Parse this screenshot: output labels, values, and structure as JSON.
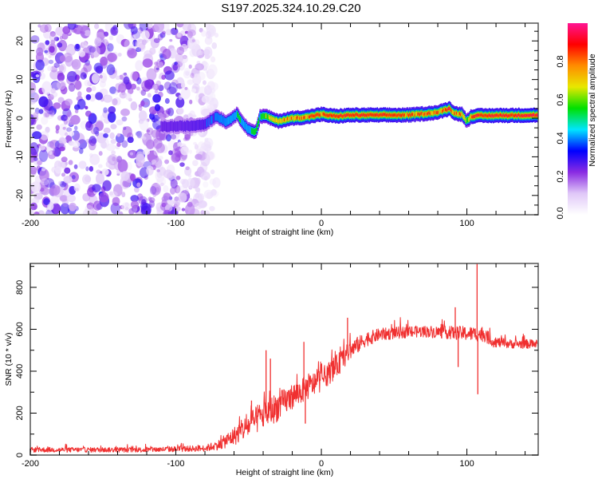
{
  "figure": {
    "title": "S197.2025.324.10.29.C20"
  },
  "chart_data": [
    {
      "type": "heatmap",
      "name": "spectrogram",
      "title": "S197.2025.324.10.29.C20",
      "xlabel": "Height of straight line (km)",
      "ylabel": "Frequency (Hz)",
      "xlim": [
        -200,
        149
      ],
      "ylim": [
        -25,
        24.6
      ],
      "xticks": [
        -200,
        -100,
        0,
        100
      ],
      "xtick_labels": [
        "-200",
        "-100",
        "0",
        "100"
      ],
      "yticks": [
        -20,
        -10,
        0,
        10,
        20
      ],
      "ytick_labels": [
        "-20",
        "-10",
        "0",
        "10",
        "20"
      ],
      "colorbar": {
        "label": "Normalized spectral amplitude",
        "range": [
          0.0,
          1.0
        ],
        "ticks": [
          0.0,
          0.2,
          0.4,
          0.6,
          0.8
        ],
        "tick_labels": [
          "0.0",
          "0.2",
          "0.4",
          "0.6",
          "0.8"
        ],
        "colormap": [
          "#ffffff",
          "#e0c8f8",
          "#8a2be2",
          "#0000ff",
          "#00e5ff",
          "#00e000",
          "#e8e800",
          "#ff8c00",
          "#ff0000",
          "#ff1493"
        ]
      },
      "noise_region_km": [
        -200,
        -80
      ],
      "noise_amplitude": 0.12,
      "ridge": {
        "x_km": [
          -110,
          -90,
          -80,
          -72,
          -65,
          -58,
          -50,
          -45,
          -42,
          -38,
          -30,
          -20,
          -10,
          0,
          10,
          20,
          40,
          60,
          80,
          88,
          92,
          97,
          100,
          103,
          106,
          120,
          149
        ],
        "freq_hz": [
          -2.2,
          -2.0,
          -1.5,
          0.5,
          -1.0,
          1.0,
          -3.0,
          -3.5,
          0.5,
          0.5,
          -0.8,
          0.0,
          0.3,
          1.0,
          0.5,
          0.8,
          0.8,
          0.8,
          1.5,
          2.5,
          1.2,
          1.0,
          -0.8,
          0.5,
          0.6,
          0.7,
          0.8
        ],
        "amplitude": [
          0.25,
          0.3,
          0.35,
          0.4,
          0.45,
          0.55,
          0.5,
          0.6,
          0.55,
          0.7,
          0.8,
          0.85,
          0.9,
          0.9,
          0.92,
          0.95,
          0.95,
          0.9,
          0.85,
          0.95,
          0.85,
          0.9,
          0.6,
          0.9,
          0.95,
          0.97,
          0.97
        ]
      }
    },
    {
      "type": "line",
      "name": "snr",
      "xlabel": "Height of straight line (km)",
      "ylabel": "SNR (10 * v/v)",
      "xlim": [
        -200,
        149
      ],
      "ylim": [
        0,
        914
      ],
      "xticks": [
        -200,
        -100,
        0,
        100
      ],
      "xtick_labels": [
        "-200",
        "-100",
        "0",
        "100"
      ],
      "yticks": [
        0,
        200,
        400,
        600,
        800
      ],
      "ytick_labels": [
        "0",
        "200",
        "400",
        "600",
        "800"
      ],
      "color": "#f03030",
      "series": [
        {
          "name": "SNR",
          "trend_x_km": [
            -200,
            -120,
            -80,
            -70,
            -60,
            -50,
            -40,
            -30,
            -20,
            -10,
            0,
            10,
            20,
            30,
            40,
            55,
            70,
            85,
            100,
            112,
            118,
            130,
            149
          ],
          "trend_snr": [
            25,
            25,
            32,
            50,
            90,
            140,
            190,
            230,
            280,
            320,
            360,
            420,
            500,
            550,
            575,
            585,
            590,
            585,
            580,
            575,
            540,
            530,
            530
          ],
          "noise_amplitude": [
            12,
            12,
            15,
            25,
            45,
            60,
            70,
            70,
            60,
            60,
            55,
            55,
            45,
            35,
            30,
            28,
            28,
            30,
            35,
            35,
            25,
            22,
            22
          ],
          "spikes": [
            {
              "x_km": -38,
              "snr": 500
            },
            {
              "x_km": -35,
              "snr": 460
            },
            {
              "x_km": -48,
              "snr": 260
            },
            {
              "x_km": -12,
              "snr": 540
            },
            {
              "x_km": -11,
              "snr": 150
            },
            {
              "x_km": 18,
              "snr": 655
            },
            {
              "x_km": 92,
              "snr": 705
            },
            {
              "x_km": 94,
              "snr": 420
            },
            {
              "x_km": 107,
              "snr": 914
            },
            {
              "x_km": 107.5,
              "snr": 290
            }
          ]
        }
      ]
    }
  ]
}
